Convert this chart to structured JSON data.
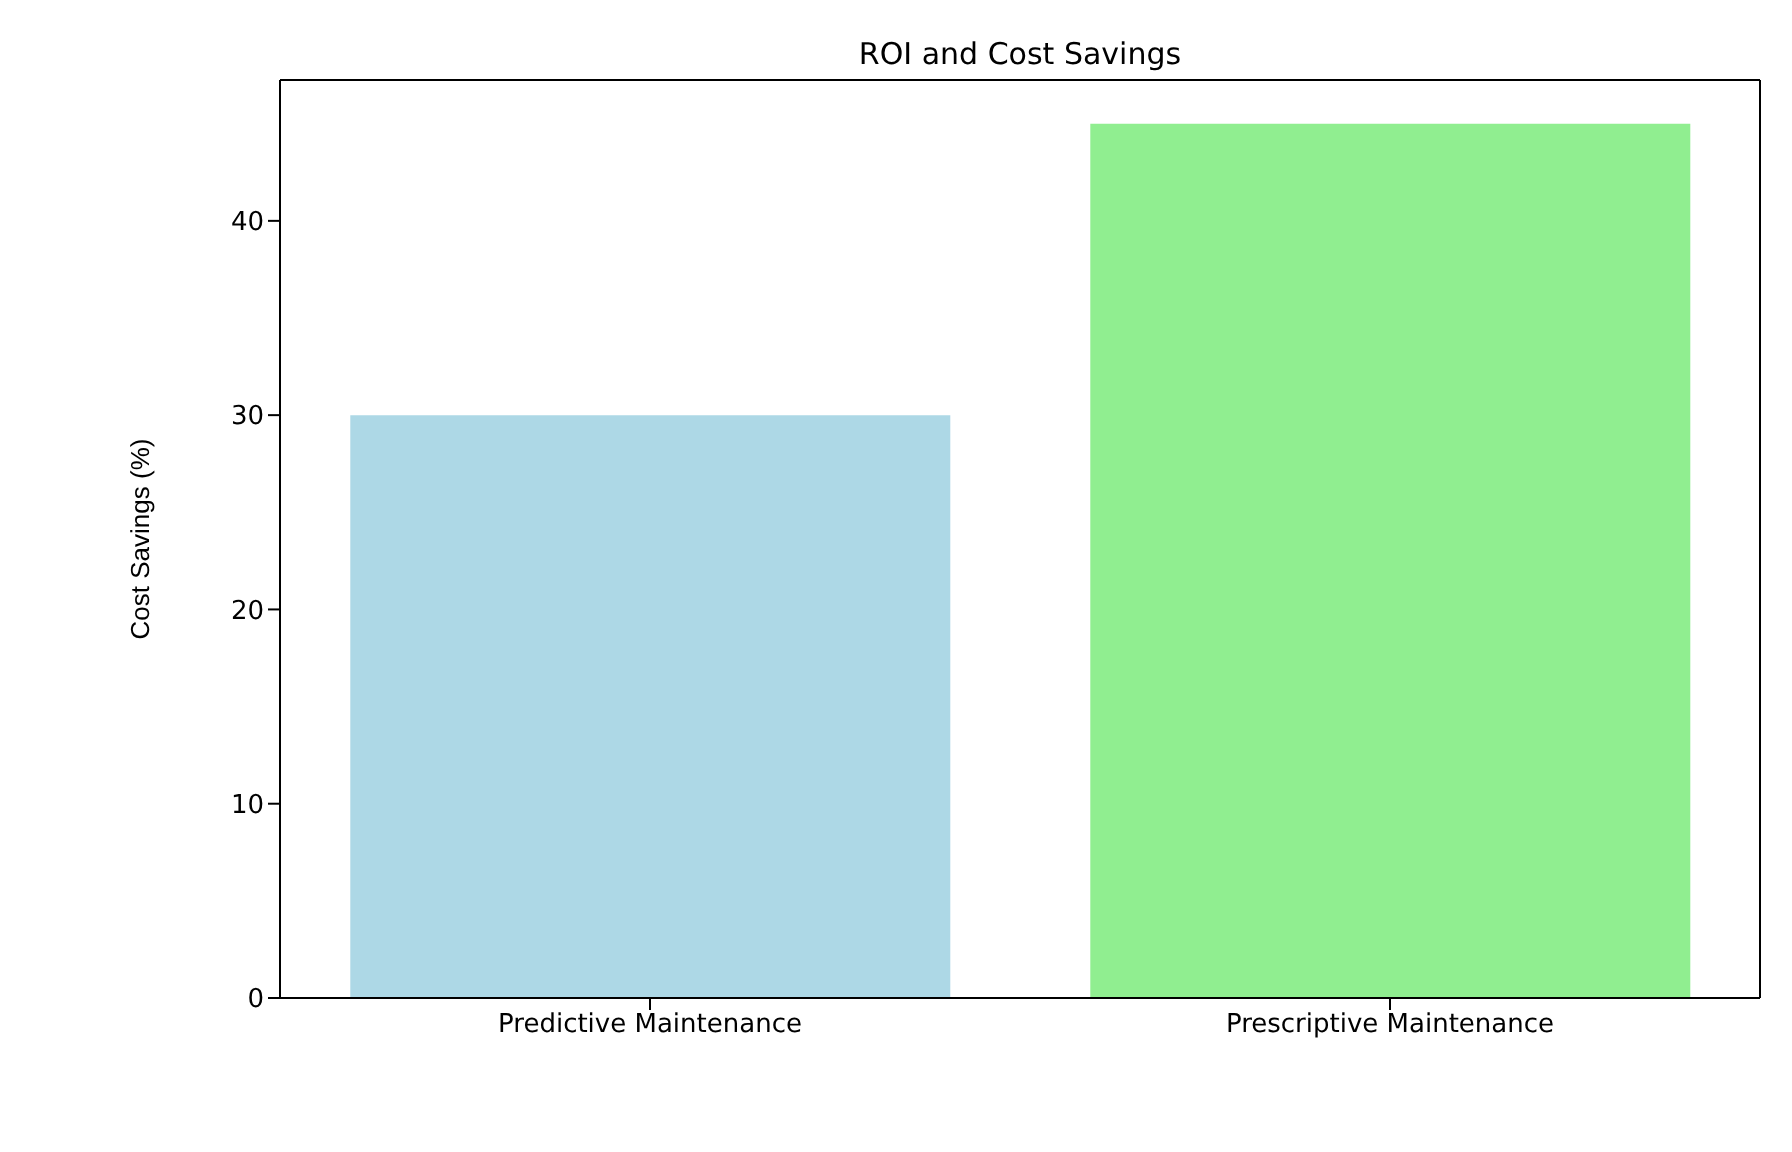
{
  "chart_data": {
    "type": "bar",
    "title": "ROI and Cost Savings",
    "ylabel": "Cost Savings (%)",
    "categories": [
      "Predictive Maintenance",
      "Prescriptive Maintenance"
    ],
    "values": [
      30,
      45
    ],
    "colors": [
      "#add8e6",
      "#90ee90"
    ],
    "ylim": [
      0,
      47.25
    ],
    "yticks": [
      0,
      10,
      20,
      30,
      40
    ],
    "grid": false
  }
}
